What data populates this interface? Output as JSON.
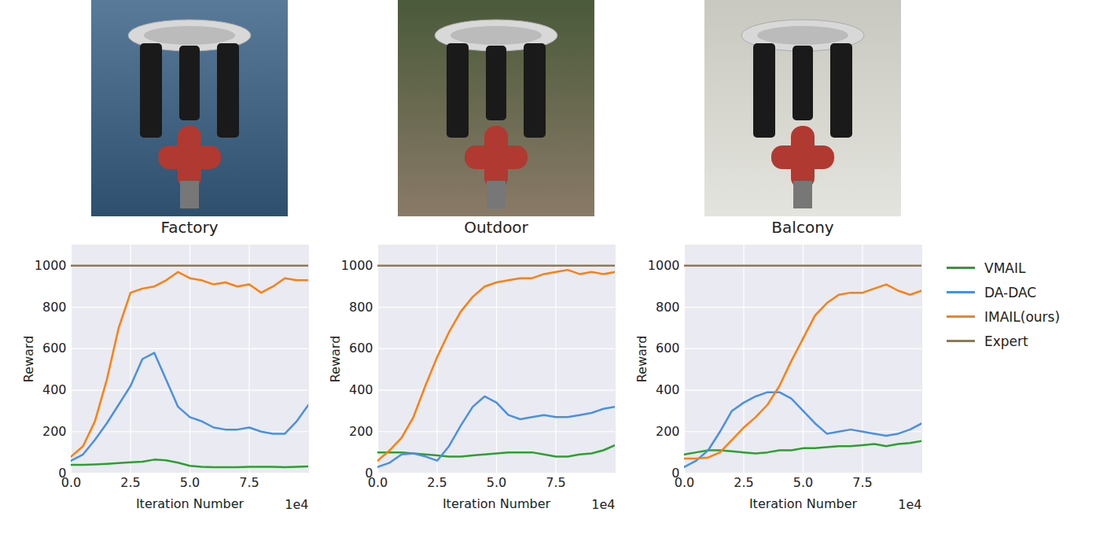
{
  "chart_data": [
    {
      "type": "line",
      "title": "Factory",
      "xlabel": "Iteration Number",
      "ylabel": "Reward",
      "annotations": [
        "1e4"
      ],
      "xlim": [
        0,
        10
      ],
      "ylim": [
        0,
        1100
      ],
      "xticks": [
        {
          "value": 0,
          "label": "0.0"
        },
        {
          "value": 2.5,
          "label": "2.5"
        },
        {
          "value": 5,
          "label": "5.0"
        },
        {
          "value": 7.5,
          "label": "7.5"
        }
      ],
      "yticks": [
        0,
        200,
        400,
        600,
        800,
        1000
      ],
      "grid": true,
      "x": [
        0,
        0.5,
        1,
        1.5,
        2,
        2.5,
        3,
        3.5,
        4,
        4.5,
        5,
        5.5,
        6,
        6.5,
        7,
        7.5,
        8,
        8.5,
        9,
        9.5,
        10
      ],
      "series": [
        {
          "name": "VMAIL",
          "color": "#2ca02c",
          "values": [
            40,
            40,
            42,
            45,
            48,
            52,
            55,
            65,
            62,
            50,
            35,
            30,
            28,
            28,
            28,
            30,
            30,
            30,
            28,
            30,
            32
          ]
        },
        {
          "name": "DA-DAC",
          "color": "#4a90e2",
          "values": [
            60,
            90,
            160,
            240,
            330,
            420,
            550,
            580,
            450,
            320,
            270,
            250,
            220,
            210,
            210,
            220,
            200,
            190,
            190,
            250,
            330
          ]
        },
        {
          "name": "IMAIL(ours)",
          "color": "#ff7f0e",
          "values": [
            80,
            130,
            250,
            450,
            700,
            870,
            890,
            900,
            930,
            970,
            940,
            930,
            910,
            920,
            900,
            910,
            870,
            900,
            940,
            930,
            930
          ]
        },
        {
          "name": "Expert",
          "color": "#8c7a5c",
          "values": [
            1000,
            1000,
            1000,
            1000,
            1000,
            1000,
            1000,
            1000,
            1000,
            1000,
            1000,
            1000,
            1000,
            1000,
            1000,
            1000,
            1000,
            1000,
            1000,
            1000,
            1000
          ]
        }
      ]
    },
    {
      "type": "line",
      "title": "Outdoor",
      "xlabel": "Iteration Number",
      "ylabel": "Reward",
      "annotations": [
        "1e4"
      ],
      "xlim": [
        0,
        10
      ],
      "ylim": [
        0,
        1100
      ],
      "xticks": [
        {
          "value": 0,
          "label": "0.0"
        },
        {
          "value": 2.5,
          "label": "2.5"
        },
        {
          "value": 5,
          "label": "5.0"
        },
        {
          "value": 7.5,
          "label": "7.5"
        }
      ],
      "yticks": [
        0,
        200,
        400,
        600,
        800,
        1000
      ],
      "grid": true,
      "x": [
        0,
        0.5,
        1,
        1.5,
        2,
        2.5,
        3,
        3.5,
        4,
        4.5,
        5,
        5.5,
        6,
        6.5,
        7,
        7.5,
        8,
        8.5,
        9,
        9.5,
        10
      ],
      "series": [
        {
          "name": "VMAIL",
          "color": "#2ca02c",
          "values": [
            100,
            100,
            100,
            95,
            90,
            85,
            80,
            80,
            85,
            90,
            95,
            100,
            100,
            100,
            90,
            80,
            80,
            90,
            95,
            110,
            135
          ]
        },
        {
          "name": "DA-DAC",
          "color": "#4a90e2",
          "values": [
            30,
            50,
            90,
            95,
            80,
            60,
            130,
            230,
            320,
            370,
            340,
            280,
            260,
            270,
            280,
            270,
            270,
            280,
            290,
            310,
            320
          ]
        },
        {
          "name": "IMAIL(ours)",
          "color": "#ff7f0e",
          "values": [
            60,
            110,
            170,
            270,
            420,
            560,
            680,
            780,
            850,
            900,
            920,
            930,
            940,
            940,
            960,
            970,
            980,
            960,
            970,
            960,
            970
          ]
        },
        {
          "name": "Expert",
          "color": "#8c7a5c",
          "values": [
            1000,
            1000,
            1000,
            1000,
            1000,
            1000,
            1000,
            1000,
            1000,
            1000,
            1000,
            1000,
            1000,
            1000,
            1000,
            1000,
            1000,
            1000,
            1000,
            1000,
            1000
          ]
        }
      ]
    },
    {
      "type": "line",
      "title": "Balcony",
      "xlabel": "Iteration Number",
      "ylabel": "Reward",
      "annotations": [
        "1e4"
      ],
      "legend": "right",
      "xlim": [
        0,
        10
      ],
      "ylim": [
        0,
        1100
      ],
      "xticks": [
        {
          "value": 0,
          "label": "0.0"
        },
        {
          "value": 2.5,
          "label": "2.5"
        },
        {
          "value": 5,
          "label": "5.0"
        },
        {
          "value": 7.5,
          "label": "7.5"
        }
      ],
      "yticks": [
        0,
        200,
        400,
        600,
        800,
        1000
      ],
      "grid": true,
      "x": [
        0,
        0.5,
        1,
        1.5,
        2,
        2.5,
        3,
        3.5,
        4,
        4.5,
        5,
        5.5,
        6,
        6.5,
        7,
        7.5,
        8,
        8.5,
        9,
        9.5,
        10
      ],
      "series": [
        {
          "name": "VMAIL",
          "color": "#2ca02c",
          "values": [
            90,
            100,
            110,
            110,
            105,
            100,
            95,
            100,
            110,
            110,
            120,
            120,
            125,
            130,
            130,
            135,
            140,
            130,
            140,
            145,
            155
          ]
        },
        {
          "name": "DA-DAC",
          "color": "#4a90e2",
          "values": [
            30,
            60,
            110,
            200,
            300,
            340,
            370,
            390,
            390,
            360,
            300,
            240,
            190,
            200,
            210,
            200,
            190,
            180,
            190,
            210,
            240
          ]
        },
        {
          "name": "IMAIL(ours)",
          "color": "#ff7f0e",
          "values": [
            70,
            70,
            75,
            100,
            160,
            220,
            270,
            330,
            420,
            540,
            650,
            760,
            820,
            860,
            870,
            870,
            890,
            910,
            880,
            860,
            880
          ]
        },
        {
          "name": "Expert",
          "color": "#8c7a5c",
          "values": [
            1000,
            1000,
            1000,
            1000,
            1000,
            1000,
            1000,
            1000,
            1000,
            1000,
            1000,
            1000,
            1000,
            1000,
            1000,
            1000,
            1000,
            1000,
            1000,
            1000,
            1000
          ]
        }
      ]
    }
  ]
}
